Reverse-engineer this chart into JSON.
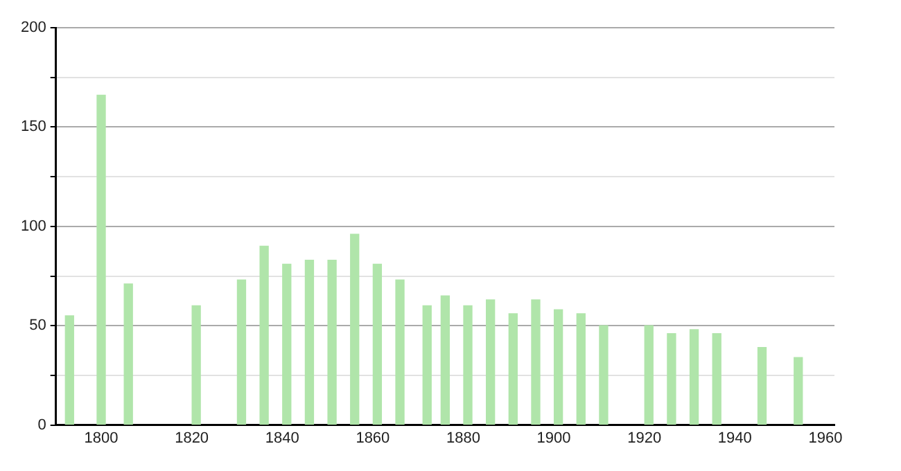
{
  "chart_data": {
    "type": "bar",
    "x": [
      1793,
      1800,
      1806,
      1821,
      1831,
      1836,
      1841,
      1846,
      1851,
      1856,
      1861,
      1866,
      1872,
      1876,
      1881,
      1886,
      1891,
      1896,
      1901,
      1906,
      1911,
      1921,
      1926,
      1931,
      1936,
      1946,
      1954
    ],
    "values": [
      55,
      166,
      71,
      60,
      73,
      90,
      81,
      83,
      83,
      96,
      81,
      73,
      60,
      65,
      60,
      63,
      56,
      63,
      58,
      56,
      50,
      50,
      46,
      48,
      46,
      39,
      34
    ],
    "color": "#b0e5aa",
    "xlim": [
      1790,
      1962
    ],
    "xticks": [
      1800,
      1820,
      1840,
      1860,
      1880,
      1900,
      1920,
      1940,
      1960
    ],
    "ylim": [
      0,
      200
    ],
    "yticks": [
      0,
      {
        "value": 25,
        "label": null
      },
      50,
      {
        "value": 75,
        "label": null
      },
      100,
      {
        "value": 125,
        "label": null
      },
      150,
      {
        "value": 175,
        "label": null
      },
      200
    ],
    "grid": "y",
    "legend": false
  }
}
